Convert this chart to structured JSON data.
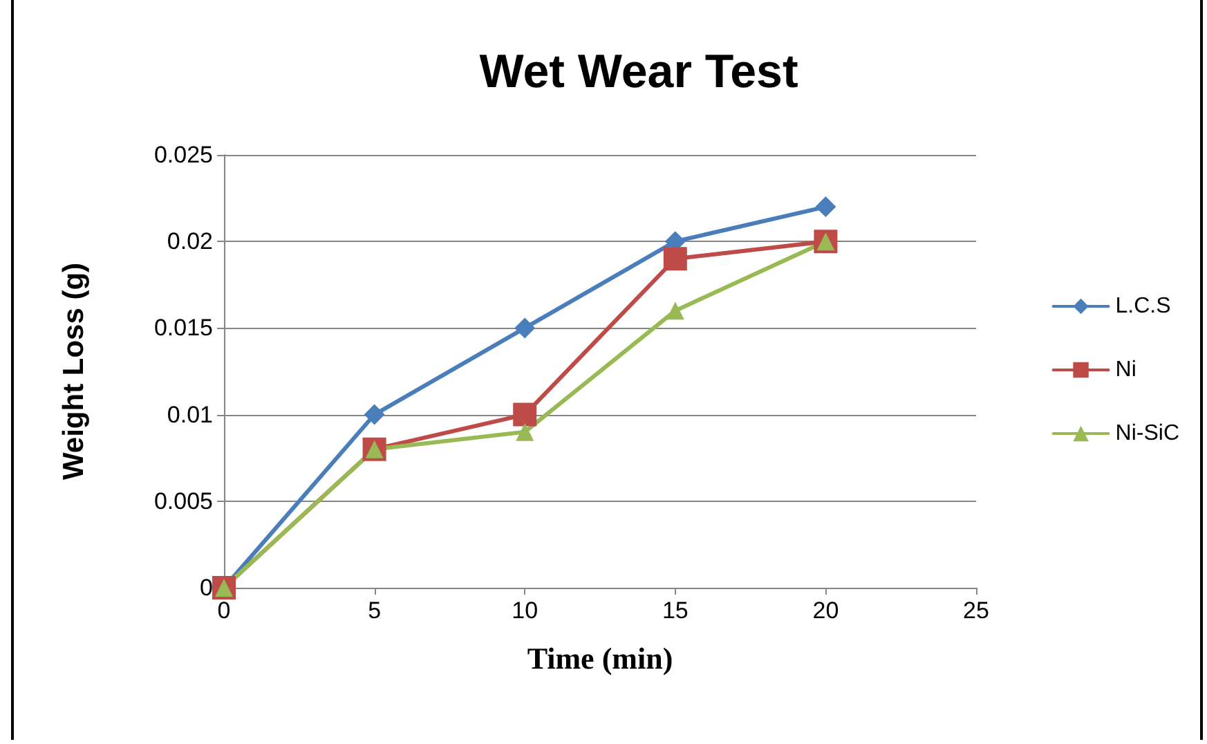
{
  "chart_data": {
    "type": "line",
    "title": "Wet Wear Test",
    "xlabel": "Time (min)",
    "ylabel": "Weight Loss (g)",
    "x": [
      0,
      5,
      10,
      15,
      20
    ],
    "series": [
      {
        "name": "L.C.S",
        "color": "#4a7ebb",
        "marker": "diamond",
        "values": [
          0,
          0.01,
          0.015,
          0.02,
          0.022
        ]
      },
      {
        "name": "Ni",
        "color": "#be4b48",
        "marker": "square",
        "values": [
          0,
          0.008,
          0.01,
          0.019,
          0.02
        ]
      },
      {
        "name": "Ni-SiC",
        "color": "#98b954",
        "marker": "triangle",
        "values": [
          0,
          0.008,
          0.009,
          0.016,
          0.02
        ]
      }
    ],
    "xlim": [
      0,
      25
    ],
    "xticks": [
      0,
      5,
      10,
      15,
      20,
      25
    ],
    "ylim": [
      0,
      0.025
    ],
    "yticks": [
      0,
      0.005,
      0.01,
      0.015,
      0.02,
      0.025
    ],
    "grid": "y",
    "legend": "right",
    "line_style": "solid"
  }
}
